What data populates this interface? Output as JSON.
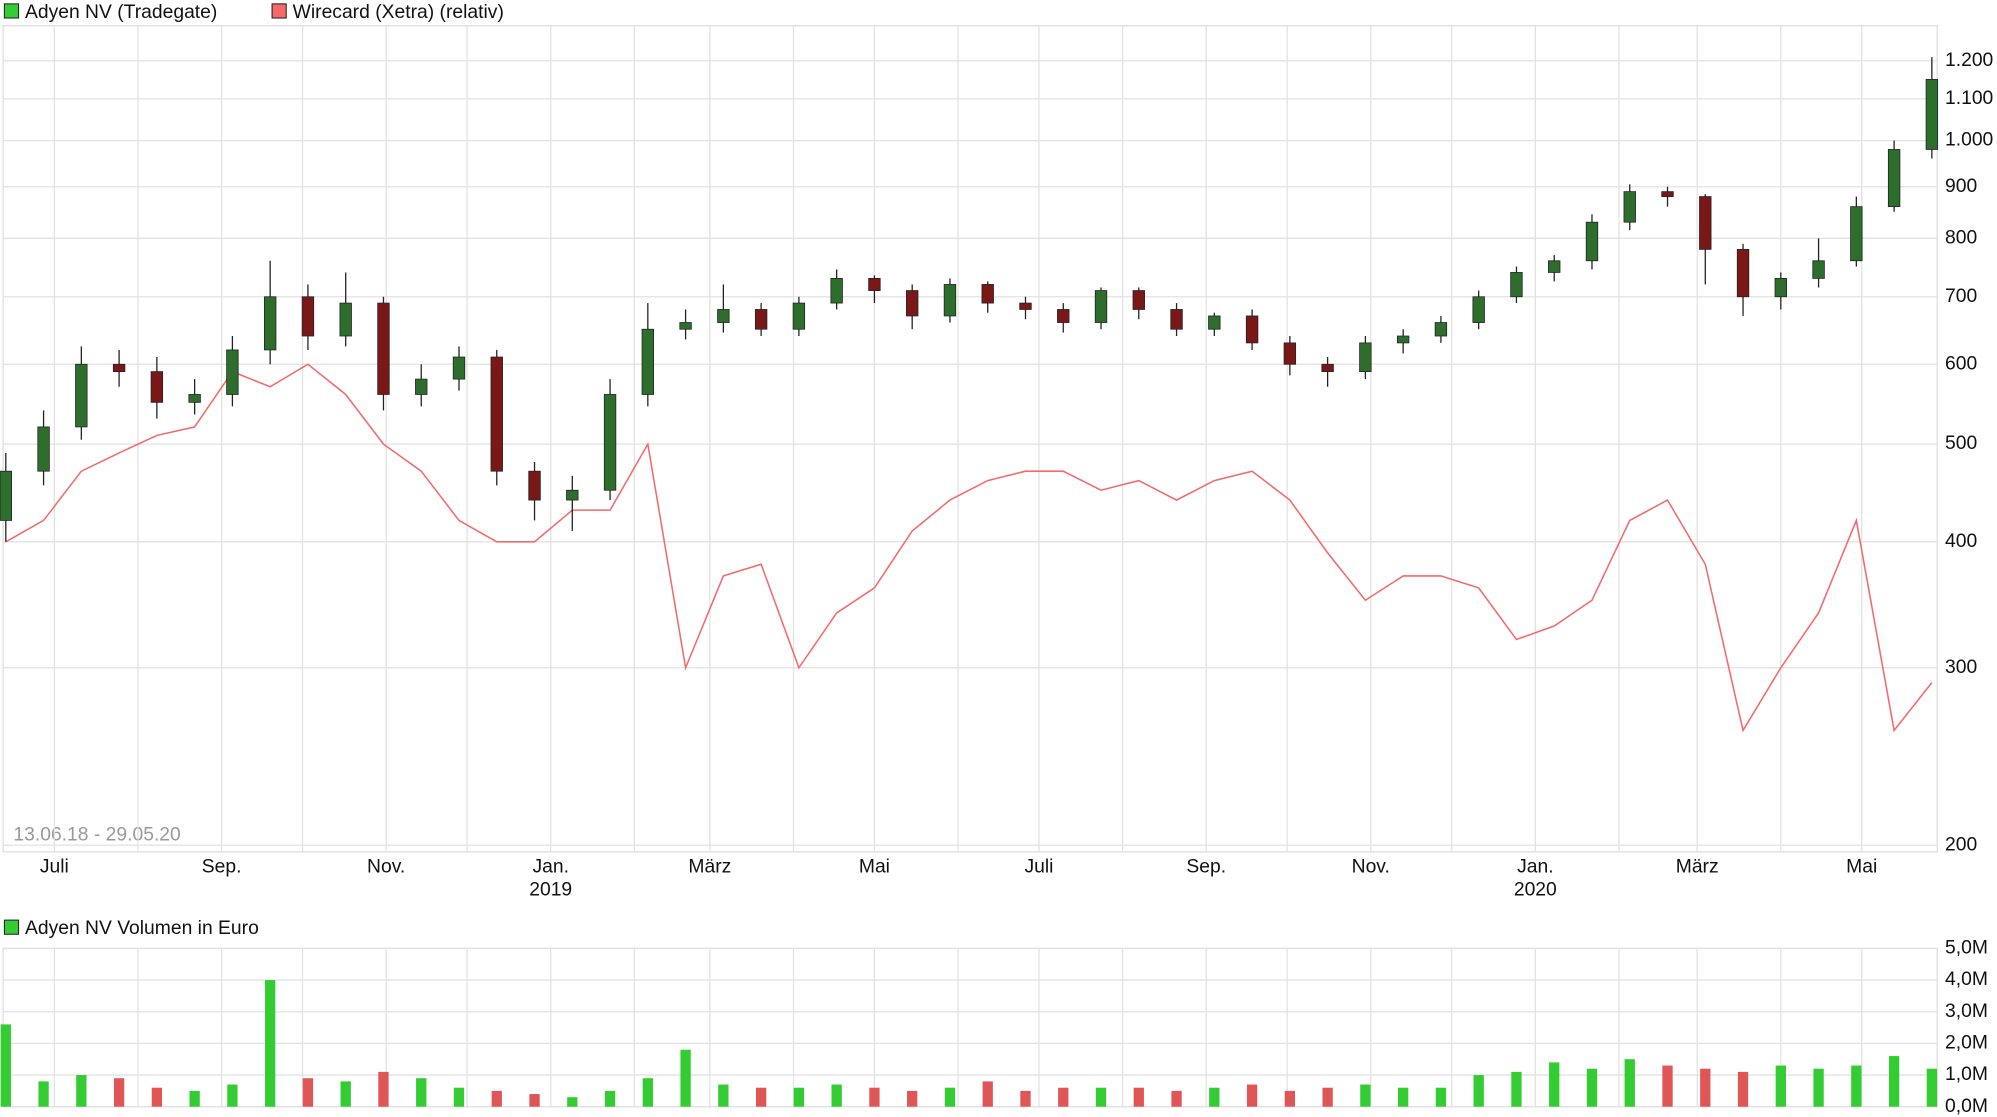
{
  "chart_data": [
    {
      "type": "candlestick",
      "date_range": "13.06.18 - 29.05.20",
      "log_scale": true,
      "grid": true,
      "ylim": [
        197,
        1300
      ],
      "yticks": [
        200,
        300,
        400,
        500,
        600,
        700,
        800,
        900,
        {
          "value": 1000,
          "label": "1.000"
        },
        {
          "value": 1100,
          "label": "1.100"
        },
        {
          "value": 1200,
          "label": "1.200"
        }
      ],
      "xlim": [
        -1,
        716
      ],
      "xticks": [
        {
          "value": 18,
          "label": "Juli"
        },
        {
          "value": 80,
          "label": "Sep."
        },
        {
          "value": 141,
          "label": "Nov."
        },
        {
          "value": 202,
          "label": "Jan.",
          "year": "2019"
        },
        {
          "value": 261,
          "label": "März"
        },
        {
          "value": 322,
          "label": "Mai"
        },
        {
          "value": 383,
          "label": "Juli"
        },
        {
          "value": 445,
          "label": "Sep."
        },
        {
          "value": 506,
          "label": "Nov."
        },
        {
          "value": 567,
          "label": "Jan.",
          "year": "2020"
        },
        {
          "value": 627,
          "label": "März"
        },
        {
          "value": 688,
          "label": "Mai"
        }
      ],
      "xminor": [
        49,
        110,
        171,
        233,
        292,
        353,
        414,
        475,
        536,
        598,
        658
      ],
      "x": [
        0,
        14,
        28,
        42,
        56,
        70,
        84,
        98,
        112,
        126,
        140,
        154,
        168,
        182,
        196,
        210,
        224,
        238,
        252,
        266,
        280,
        294,
        308,
        322,
        336,
        350,
        364,
        378,
        392,
        406,
        420,
        434,
        448,
        462,
        476,
        490,
        504,
        518,
        532,
        546,
        560,
        574,
        588,
        602,
        616,
        630,
        644,
        658,
        672,
        686,
        700,
        714
      ],
      "series": [
        {
          "name": "Adyen NV (Tradegate)",
          "type": "candlestick",
          "color": "#33cc33",
          "up_color": "#2d6e2d",
          "down_color": "#7a1818",
          "open": [
            420,
            470,
            520,
            600,
            590,
            550,
            560,
            620,
            700,
            640,
            690,
            560,
            580,
            610,
            470,
            440,
            450,
            560,
            650,
            660,
            680,
            650,
            690,
            730,
            710,
            670,
            720,
            690,
            680,
            660,
            710,
            680,
            650,
            670,
            630,
            600,
            590,
            630,
            640,
            660,
            700,
            740,
            760,
            830,
            890,
            880,
            780,
            700,
            730,
            760,
            860,
            980
          ],
          "high": [
            490,
            540,
            625,
            620,
            610,
            580,
            640,
            760,
            720,
            740,
            700,
            600,
            625,
            620,
            480,
            465,
            580,
            690,
            680,
            720,
            690,
            700,
            745,
            735,
            720,
            730,
            725,
            700,
            690,
            715,
            715,
            690,
            675,
            680,
            640,
            610,
            640,
            650,
            670,
            710,
            750,
            770,
            845,
            905,
            900,
            885,
            790,
            740,
            800,
            880,
            1000,
            1210
          ],
          "low": [
            400,
            455,
            505,
            570,
            530,
            535,
            545,
            600,
            620,
            625,
            540,
            545,
            565,
            455,
            420,
            410,
            440,
            545,
            635,
            645,
            640,
            640,
            680,
            690,
            650,
            660,
            675,
            665,
            645,
            650,
            665,
            640,
            640,
            620,
            585,
            570,
            580,
            615,
            630,
            650,
            690,
            725,
            745,
            815,
            860,
            720,
            670,
            680,
            715,
            750,
            850,
            960
          ],
          "close": [
            470,
            520,
            600,
            590,
            550,
            560,
            620,
            700,
            640,
            690,
            560,
            580,
            610,
            470,
            440,
            450,
            560,
            650,
            660,
            680,
            650,
            690,
            730,
            710,
            670,
            720,
            690,
            680,
            660,
            710,
            680,
            650,
            670,
            630,
            600,
            590,
            630,
            640,
            660,
            700,
            740,
            760,
            830,
            890,
            880,
            780,
            700,
            730,
            760,
            860,
            980,
            1150
          ]
        },
        {
          "name": "Wirecard (Xetra) (relativ)",
          "type": "line",
          "color": "#f46a6a",
          "values": [
            400,
            420,
            470,
            490,
            510,
            520,
            590,
            570,
            600,
            560,
            500,
            470,
            420,
            400,
            400,
            430,
            430,
            500,
            300,
            370,
            380,
            300,
            340,
            360,
            410,
            440,
            460,
            470,
            470,
            450,
            460,
            440,
            460,
            470,
            440,
            390,
            350,
            370,
            370,
            360,
            320,
            330,
            350,
            420,
            440,
            380,
            260,
            300,
            340,
            420,
            260,
            290
          ]
        }
      ]
    },
    {
      "type": "bar",
      "title": "Adyen NV Volumen in Euro",
      "color": "#33cc33",
      "grid": true,
      "ylim": [
        0,
        5000000
      ],
      "yticks": [
        {
          "value": 0,
          "label": "0,0M"
        },
        {
          "value": 1000000,
          "label": "1,0M"
        },
        {
          "value": 2000000,
          "label": "2,0M"
        },
        {
          "value": 3000000,
          "label": "3,0M"
        },
        {
          "value": 4000000,
          "label": "4,0M"
        },
        {
          "value": 5000000,
          "label": "5,0M"
        }
      ],
      "values": [
        2600000,
        800000,
        1000000,
        900000,
        600000,
        500000,
        700000,
        4000000,
        900000,
        800000,
        1100000,
        900000,
        600000,
        500000,
        400000,
        300000,
        500000,
        900000,
        1800000,
        700000,
        600000,
        600000,
        700000,
        600000,
        500000,
        600000,
        800000,
        500000,
        600000,
        600000,
        600000,
        500000,
        600000,
        700000,
        500000,
        600000,
        700000,
        600000,
        600000,
        1000000,
        1100000,
        1400000,
        1200000,
        1500000,
        1300000,
        1200000,
        1100000,
        1300000,
        1200000,
        1300000,
        1600000,
        1200000
      ]
    }
  ]
}
